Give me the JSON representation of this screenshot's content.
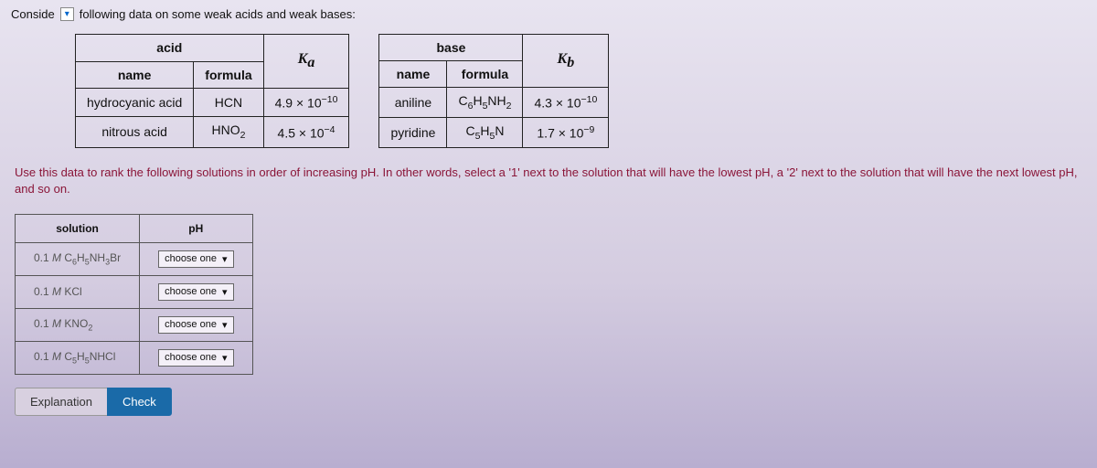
{
  "top": {
    "conside": "Conside",
    "rest": "following data on some weak acids and weak bases:"
  },
  "acid_table": {
    "header_span": "acid",
    "col_name": "name",
    "col_formula": "formula",
    "col_k": "K",
    "col_k_sub": "a",
    "rows": [
      {
        "name": "hydrocyanic acid",
        "formula_main": "HCN",
        "formula_sub": "",
        "k_coef": "4.9 × 10",
        "k_exp": "−10"
      },
      {
        "name": "nitrous acid",
        "formula_main": "HNO",
        "formula_sub": "2",
        "k_coef": "4.5 × 10",
        "k_exp": "−4"
      }
    ]
  },
  "base_table": {
    "header_span": "base",
    "col_name": "name",
    "col_formula": "formula",
    "col_k": "K",
    "col_k_sub": "b",
    "rows": [
      {
        "name": "aniline",
        "formula_html": "C6H5NH2",
        "k_coef": "4.3 × 10",
        "k_exp": "−10"
      },
      {
        "name": "pyridine",
        "formula_html": "C5H5N",
        "k_coef": "1.7 × 10",
        "k_exp": "−9"
      }
    ]
  },
  "instructions": "Use this data to rank the following solutions in order of increasing pH. In other words, select a '1' next to the solution that will have the lowest pH, a '2' next to the solution that will have the next lowest pH, and so on.",
  "solutions_table": {
    "col_solution": "solution",
    "col_ph": "pH",
    "choose": "choose one",
    "rows": [
      "0.1 M C6H5NH3Br",
      "0.1 M KCl",
      "0.1 M KNO2",
      "0.1 M C5H5NHCl"
    ]
  },
  "buttons": {
    "explanation": "Explanation",
    "check": "Check"
  }
}
